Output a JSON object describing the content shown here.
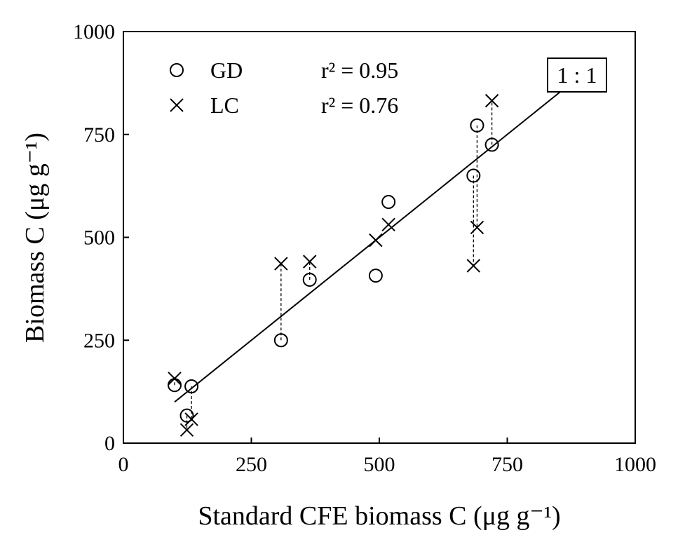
{
  "chart_data": {
    "type": "scatter",
    "xlabel": "Standard CFE biomass C (μg g⁻¹)",
    "ylabel": "Biomass C (μg g⁻¹)",
    "xlim": [
      0,
      1000
    ],
    "ylim": [
      0,
      1000
    ],
    "x_ticks": [
      "0",
      "250",
      "500",
      "750",
      "1000"
    ],
    "y_ticks": [
      "0",
      "250",
      "500",
      "750",
      "1000"
    ],
    "grid": false,
    "legend_position": "top-left",
    "series": [
      {
        "name": "GD",
        "marker": "circle",
        "r2_label": "r² = 0.95",
        "points": [
          [
            100,
            141
          ],
          [
            124,
            67
          ],
          [
            133,
            138
          ],
          [
            308,
            250
          ],
          [
            364,
            397
          ],
          [
            493,
            407
          ],
          [
            518,
            586
          ],
          [
            684,
            650
          ],
          [
            691,
            772
          ],
          [
            720,
            725
          ]
        ]
      },
      {
        "name": "LC",
        "marker": "cross",
        "r2_label": "r² = 0.76",
        "points": [
          [
            100,
            157
          ],
          [
            124,
            32
          ],
          [
            133,
            58
          ],
          [
            308,
            436
          ],
          [
            364,
            441
          ],
          [
            493,
            493
          ],
          [
            518,
            531
          ],
          [
            684,
            431
          ],
          [
            691,
            524
          ],
          [
            720,
            832
          ]
        ]
      }
    ],
    "paired_connectors": [
      [
        100,
        141,
        157
      ],
      [
        124,
        67,
        32
      ],
      [
        133,
        138,
        58
      ],
      [
        308,
        250,
        436
      ],
      [
        364,
        397,
        441
      ],
      [
        684,
        650,
        431
      ],
      [
        691,
        772,
        524
      ],
      [
        720,
        725,
        832
      ]
    ],
    "reference_line": {
      "label": "1 : 1",
      "from": [
        100,
        100
      ],
      "to": [
        855,
        855
      ]
    }
  }
}
